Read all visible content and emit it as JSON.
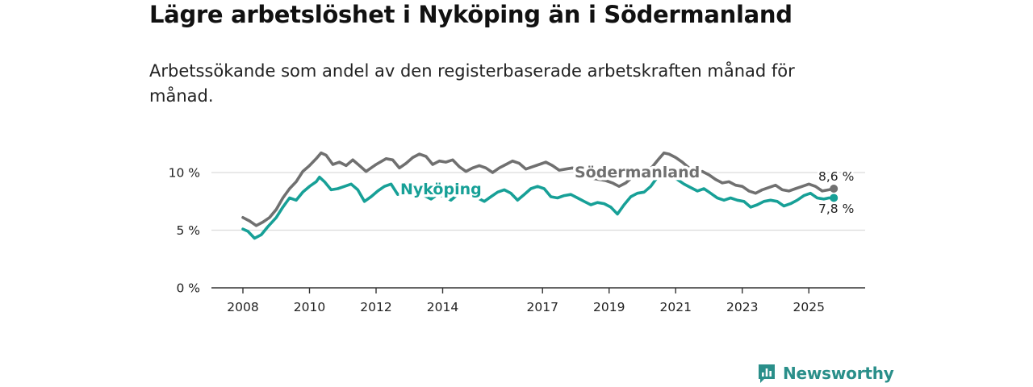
{
  "title": "Lägre arbetslöshet i Nyköping än i Södermanland",
  "subtitle": "Arbetssökande som andel av den registerbaserade arbetskraften månad för månad.",
  "brand": {
    "name": "Newsworthy",
    "color": "#2a8f8a"
  },
  "chart_data": {
    "type": "line",
    "title": "Lägre arbetslöshet i Nyköping än i Södermanland",
    "xlabel": "",
    "ylabel": "",
    "xlim": [
      2007.5,
      2026.75
    ],
    "ylim": [
      0,
      13
    ],
    "yticks": [
      {
        "value": 0,
        "label": "0 %"
      },
      {
        "value": 5,
        "label": "5 %"
      },
      {
        "value": 10,
        "label": "10 %"
      }
    ],
    "xticks": [
      {
        "value": 2008,
        "label": "2008"
      },
      {
        "value": 2010,
        "label": "2010"
      },
      {
        "value": 2012,
        "label": "2012"
      },
      {
        "value": 2014,
        "label": "2014"
      },
      {
        "value": 2017,
        "label": "2017"
      },
      {
        "value": 2019,
        "label": "2019"
      },
      {
        "value": 2021,
        "label": "2021"
      },
      {
        "value": 2023,
        "label": "2023"
      },
      {
        "value": 2025,
        "label": "2025"
      }
    ],
    "grid": true,
    "series": [
      {
        "name": "Södermanland",
        "color": "#707070",
        "end_label": "8,6 %",
        "points": [
          [
            2008.0,
            6.1
          ],
          [
            2008.2,
            5.8
          ],
          [
            2008.4,
            5.4
          ],
          [
            2008.6,
            5.7
          ],
          [
            2008.8,
            6.1
          ],
          [
            2009.0,
            6.8
          ],
          [
            2009.2,
            7.8
          ],
          [
            2009.4,
            8.6
          ],
          [
            2009.6,
            9.2
          ],
          [
            2009.8,
            10.1
          ],
          [
            2010.0,
            10.6
          ],
          [
            2010.2,
            11.2
          ],
          [
            2010.35,
            11.7
          ],
          [
            2010.5,
            11.5
          ],
          [
            2010.7,
            10.7
          ],
          [
            2010.9,
            10.9
          ],
          [
            2011.1,
            10.6
          ],
          [
            2011.3,
            11.1
          ],
          [
            2011.5,
            10.6
          ],
          [
            2011.7,
            10.1
          ],
          [
            2011.9,
            10.5
          ],
          [
            2012.0,
            10.7
          ],
          [
            2012.3,
            11.2
          ],
          [
            2012.5,
            11.1
          ],
          [
            2012.7,
            10.4
          ],
          [
            2012.9,
            10.8
          ],
          [
            2013.1,
            11.3
          ],
          [
            2013.3,
            11.6
          ],
          [
            2013.5,
            11.4
          ],
          [
            2013.7,
            10.7
          ],
          [
            2013.9,
            11.0
          ],
          [
            2014.1,
            10.9
          ],
          [
            2014.3,
            11.1
          ],
          [
            2014.5,
            10.5
          ],
          [
            2014.7,
            10.1
          ],
          [
            2014.9,
            10.4
          ],
          [
            2015.1,
            10.6
          ],
          [
            2015.3,
            10.4
          ],
          [
            2015.5,
            10.0
          ],
          [
            2015.7,
            10.4
          ],
          [
            2015.9,
            10.7
          ],
          [
            2016.1,
            11.0
          ],
          [
            2016.3,
            10.8
          ],
          [
            2016.5,
            10.3
          ],
          [
            2016.7,
            10.5
          ],
          [
            2016.9,
            10.7
          ],
          [
            2017.1,
            10.9
          ],
          [
            2017.3,
            10.6
          ],
          [
            2017.5,
            10.2
          ],
          [
            2017.7,
            10.3
          ],
          [
            2017.9,
            10.4
          ],
          [
            2018.1,
            10.1
          ],
          [
            2018.3,
            9.9
          ],
          [
            2018.5,
            9.5
          ],
          [
            2018.7,
            9.4
          ],
          [
            2018.9,
            9.3
          ],
          [
            2019.1,
            9.1
          ],
          [
            2019.3,
            8.8
          ],
          [
            2019.5,
            9.1
          ],
          [
            2019.7,
            9.6
          ],
          [
            2019.9,
            9.9
          ],
          [
            2020.1,
            10.0
          ],
          [
            2020.3,
            10.5
          ],
          [
            2020.5,
            11.2
          ],
          [
            2020.65,
            11.7
          ],
          [
            2020.8,
            11.6
          ],
          [
            2021.0,
            11.3
          ],
          [
            2021.2,
            10.9
          ],
          [
            2021.4,
            10.4
          ],
          [
            2021.6,
            10.0
          ],
          [
            2021.8,
            10.1
          ],
          [
            2022.0,
            9.8
          ],
          [
            2022.2,
            9.4
          ],
          [
            2022.4,
            9.1
          ],
          [
            2022.6,
            9.2
          ],
          [
            2022.8,
            8.9
          ],
          [
            2023.0,
            8.8
          ],
          [
            2023.2,
            8.4
          ],
          [
            2023.4,
            8.2
          ],
          [
            2023.6,
            8.5
          ],
          [
            2023.8,
            8.7
          ],
          [
            2024.0,
            8.9
          ],
          [
            2024.2,
            8.5
          ],
          [
            2024.4,
            8.4
          ],
          [
            2024.6,
            8.6
          ],
          [
            2024.8,
            8.8
          ],
          [
            2025.0,
            9.0
          ],
          [
            2025.2,
            8.8
          ],
          [
            2025.4,
            8.4
          ],
          [
            2025.6,
            8.5
          ],
          [
            2025.75,
            8.6
          ]
        ]
      },
      {
        "name": "Nyköping",
        "color": "#17a097",
        "end_label": "7,8 %",
        "points": [
          [
            2008.0,
            5.1
          ],
          [
            2008.15,
            4.9
          ],
          [
            2008.35,
            4.3
          ],
          [
            2008.55,
            4.6
          ],
          [
            2008.75,
            5.3
          ],
          [
            2009.0,
            6.1
          ],
          [
            2009.2,
            7.0
          ],
          [
            2009.4,
            7.8
          ],
          [
            2009.6,
            7.6
          ],
          [
            2009.8,
            8.3
          ],
          [
            2010.0,
            8.8
          ],
          [
            2010.2,
            9.2
          ],
          [
            2010.3,
            9.6
          ],
          [
            2010.45,
            9.2
          ],
          [
            2010.65,
            8.5
          ],
          [
            2010.85,
            8.6
          ],
          [
            2011.05,
            8.8
          ],
          [
            2011.25,
            9.0
          ],
          [
            2011.45,
            8.5
          ],
          [
            2011.65,
            7.5
          ],
          [
            2011.85,
            7.9
          ],
          [
            2012.05,
            8.4
          ],
          [
            2012.25,
            8.8
          ],
          [
            2012.45,
            9.0
          ],
          [
            2012.65,
            8.1
          ],
          [
            2012.85,
            8.3
          ],
          [
            2013.05,
            8.9
          ],
          [
            2013.25,
            8.6
          ],
          [
            2013.45,
            8.0
          ],
          [
            2013.65,
            7.7
          ],
          [
            2013.85,
            8.1
          ],
          [
            2014.05,
            7.9
          ],
          [
            2014.25,
            7.6
          ],
          [
            2014.45,
            8.1
          ],
          [
            2014.65,
            8.4
          ],
          [
            2014.85,
            8.0
          ],
          [
            2015.05,
            7.8
          ],
          [
            2015.25,
            7.5
          ],
          [
            2015.45,
            7.9
          ],
          [
            2015.65,
            8.3
          ],
          [
            2015.85,
            8.5
          ],
          [
            2016.05,
            8.2
          ],
          [
            2016.25,
            7.6
          ],
          [
            2016.45,
            8.1
          ],
          [
            2016.65,
            8.6
          ],
          [
            2016.85,
            8.8
          ],
          [
            2017.05,
            8.6
          ],
          [
            2017.25,
            7.9
          ],
          [
            2017.45,
            7.8
          ],
          [
            2017.65,
            8.0
          ],
          [
            2017.85,
            8.1
          ],
          [
            2018.05,
            7.8
          ],
          [
            2018.25,
            7.5
          ],
          [
            2018.45,
            7.2
          ],
          [
            2018.65,
            7.4
          ],
          [
            2018.85,
            7.3
          ],
          [
            2019.05,
            7.0
          ],
          [
            2019.25,
            6.4
          ],
          [
            2019.45,
            7.2
          ],
          [
            2019.65,
            7.9
          ],
          [
            2019.85,
            8.2
          ],
          [
            2020.05,
            8.3
          ],
          [
            2020.25,
            8.8
          ],
          [
            2020.45,
            9.6
          ],
          [
            2020.65,
            9.9
          ],
          [
            2020.85,
            9.7
          ],
          [
            2021.05,
            9.4
          ],
          [
            2021.25,
            9.0
          ],
          [
            2021.45,
            8.7
          ],
          [
            2021.65,
            8.4
          ],
          [
            2021.85,
            8.6
          ],
          [
            2022.05,
            8.2
          ],
          [
            2022.25,
            7.8
          ],
          [
            2022.45,
            7.6
          ],
          [
            2022.65,
            7.8
          ],
          [
            2022.85,
            7.6
          ],
          [
            2023.05,
            7.5
          ],
          [
            2023.25,
            7.0
          ],
          [
            2023.45,
            7.2
          ],
          [
            2023.65,
            7.5
          ],
          [
            2023.85,
            7.6
          ],
          [
            2024.05,
            7.5
          ],
          [
            2024.25,
            7.1
          ],
          [
            2024.45,
            7.3
          ],
          [
            2024.65,
            7.6
          ],
          [
            2024.85,
            8.0
          ],
          [
            2025.05,
            8.2
          ],
          [
            2025.25,
            7.8
          ],
          [
            2025.45,
            7.7
          ],
          [
            2025.6,
            7.8
          ],
          [
            2025.75,
            7.8
          ]
        ]
      }
    ]
  }
}
